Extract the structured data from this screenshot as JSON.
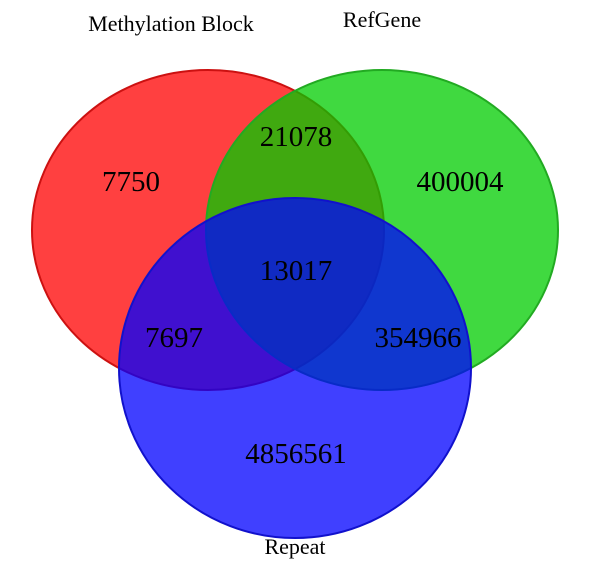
{
  "diagram": {
    "type": "venn-3",
    "sets": [
      {
        "id": "methylation-block",
        "label": "Methylation Block",
        "fill": "#ff0000",
        "stroke": "#cc1111"
      },
      {
        "id": "refgene",
        "label": "RefGene",
        "fill": "#00cc00",
        "stroke": "#22aa22"
      },
      {
        "id": "repeat",
        "label": "Repeat",
        "fill": "#0000ff",
        "stroke": "#1111cc"
      }
    ],
    "regions": [
      {
        "id": "methylation-block-only",
        "sets": [
          "methylation-block"
        ],
        "value": "7750"
      },
      {
        "id": "refgene-only",
        "sets": [
          "refgene"
        ],
        "value": "400004"
      },
      {
        "id": "repeat-only",
        "sets": [
          "repeat"
        ],
        "value": "4856561"
      },
      {
        "id": "methylation-block-refgene",
        "sets": [
          "methylation-block",
          "refgene"
        ],
        "value": "21078"
      },
      {
        "id": "methylation-block-repeat",
        "sets": [
          "methylation-block",
          "repeat"
        ],
        "value": "7697"
      },
      {
        "id": "refgene-repeat",
        "sets": [
          "refgene",
          "repeat"
        ],
        "value": "354966"
      },
      {
        "id": "all-three",
        "sets": [
          "methylation-block",
          "refgene",
          "repeat"
        ],
        "value": "13017"
      }
    ]
  }
}
